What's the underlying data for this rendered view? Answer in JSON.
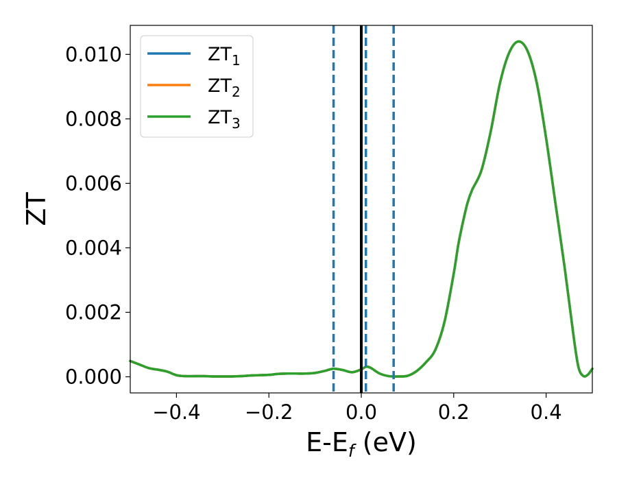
{
  "chart_data": {
    "type": "line",
    "title": "",
    "xlabel": "E-E",
    "xlabel_subscript": "f",
    "xlabel_suffix": " (eV)",
    "ylabel": "ZT",
    "xlim": [
      -0.5,
      0.5
    ],
    "ylim": [
      -0.0005,
      0.0109
    ],
    "xticks": [
      -0.4,
      -0.2,
      0.0,
      0.2,
      0.4
    ],
    "xtick_labels": [
      "−0.4",
      "−0.2",
      "0.0",
      "0.2",
      "0.4"
    ],
    "yticks": [
      0.0,
      0.002,
      0.004,
      0.006,
      0.008,
      0.01
    ],
    "ytick_labels": [
      "0.000",
      "0.002",
      "0.004",
      "0.006",
      "0.008",
      "0.010"
    ],
    "grid": false,
    "legend_position": "top-left",
    "x": [
      -0.5,
      -0.48,
      -0.46,
      -0.44,
      -0.42,
      -0.4,
      -0.38,
      -0.36,
      -0.34,
      -0.32,
      -0.3,
      -0.28,
      -0.26,
      -0.24,
      -0.22,
      -0.2,
      -0.18,
      -0.16,
      -0.14,
      -0.12,
      -0.1,
      -0.08,
      -0.06,
      -0.04,
      -0.02,
      0.0,
      0.01,
      0.02,
      0.04,
      0.06,
      0.08,
      0.1,
      0.12,
      0.14,
      0.16,
      0.18,
      0.2,
      0.21,
      0.22,
      0.23,
      0.24,
      0.26,
      0.28,
      0.3,
      0.32,
      0.34,
      0.36,
      0.38,
      0.4,
      0.42,
      0.44,
      0.46,
      0.47,
      0.48,
      0.49,
      0.5
    ],
    "series": [
      {
        "name_base": "ZT",
        "name_sub": "1",
        "color": "#1f77b4",
        "y": [
          0.00049,
          0.00038,
          0.00027,
          0.00022,
          0.00016,
          5e-05,
          2e-05,
          2e-05,
          2e-05,
          1e-05,
          1e-05,
          1e-05,
          2e-05,
          4e-05,
          5e-05,
          6e-05,
          9e-05,
          0.0001,
          0.0001,
          0.0001,
          0.00012,
          0.00018,
          0.00025,
          0.00021,
          0.00014,
          0.00023,
          0.00031,
          0.00028,
          0.0001,
          2e-05,
          1e-05,
          3e-05,
          0.00018,
          0.00045,
          0.00083,
          0.0017,
          0.0032,
          0.0041,
          0.0048,
          0.0054,
          0.0058,
          0.0064,
          0.0076,
          0.0091,
          0.01005,
          0.0104,
          0.0101,
          0.0091,
          0.0074,
          0.0054,
          0.0034,
          0.0012,
          0.0003,
          3e-05,
          6e-05,
          0.00025
        ]
      },
      {
        "name_base": "ZT",
        "name_sub": "2",
        "color": "#ff7f0e",
        "y": [
          0.00049,
          0.00038,
          0.00027,
          0.00022,
          0.00016,
          5e-05,
          2e-05,
          2e-05,
          2e-05,
          1e-05,
          1e-05,
          1e-05,
          2e-05,
          4e-05,
          5e-05,
          6e-05,
          9e-05,
          0.0001,
          0.0001,
          0.0001,
          0.00012,
          0.00018,
          0.00025,
          0.00021,
          0.00014,
          0.00023,
          0.00031,
          0.00028,
          0.0001,
          2e-05,
          1e-05,
          3e-05,
          0.00018,
          0.00045,
          0.00083,
          0.0017,
          0.0032,
          0.0041,
          0.0048,
          0.0054,
          0.0058,
          0.0064,
          0.0076,
          0.0091,
          0.01005,
          0.0104,
          0.0101,
          0.0091,
          0.0074,
          0.0054,
          0.0034,
          0.0012,
          0.0003,
          3e-05,
          6e-05,
          0.00025
        ]
      },
      {
        "name_base": "ZT",
        "name_sub": "3",
        "color": "#2ca02c",
        "y": [
          0.00049,
          0.00038,
          0.00027,
          0.00022,
          0.00016,
          5e-05,
          2e-05,
          2e-05,
          2e-05,
          1e-05,
          1e-05,
          1e-05,
          2e-05,
          4e-05,
          5e-05,
          6e-05,
          9e-05,
          0.0001,
          0.0001,
          0.0001,
          0.00012,
          0.00018,
          0.00025,
          0.00021,
          0.00014,
          0.00023,
          0.00031,
          0.00028,
          0.0001,
          2e-05,
          1e-05,
          3e-05,
          0.00018,
          0.00045,
          0.00083,
          0.0017,
          0.0032,
          0.0041,
          0.0048,
          0.0054,
          0.0058,
          0.0064,
          0.0076,
          0.0091,
          0.01005,
          0.0104,
          0.0101,
          0.0091,
          0.0074,
          0.0054,
          0.0034,
          0.0012,
          0.0003,
          3e-05,
          6e-05,
          0.00025
        ]
      }
    ],
    "vlines": [
      {
        "x": -0.06,
        "style": "dashed",
        "color": "#1f77b4"
      },
      {
        "x": 0.0,
        "style": "solid",
        "color": "#000000"
      },
      {
        "x": 0.01,
        "style": "dashed",
        "color": "#1f77b4"
      },
      {
        "x": 0.07,
        "style": "dashed",
        "color": "#1f77b4"
      }
    ]
  }
}
